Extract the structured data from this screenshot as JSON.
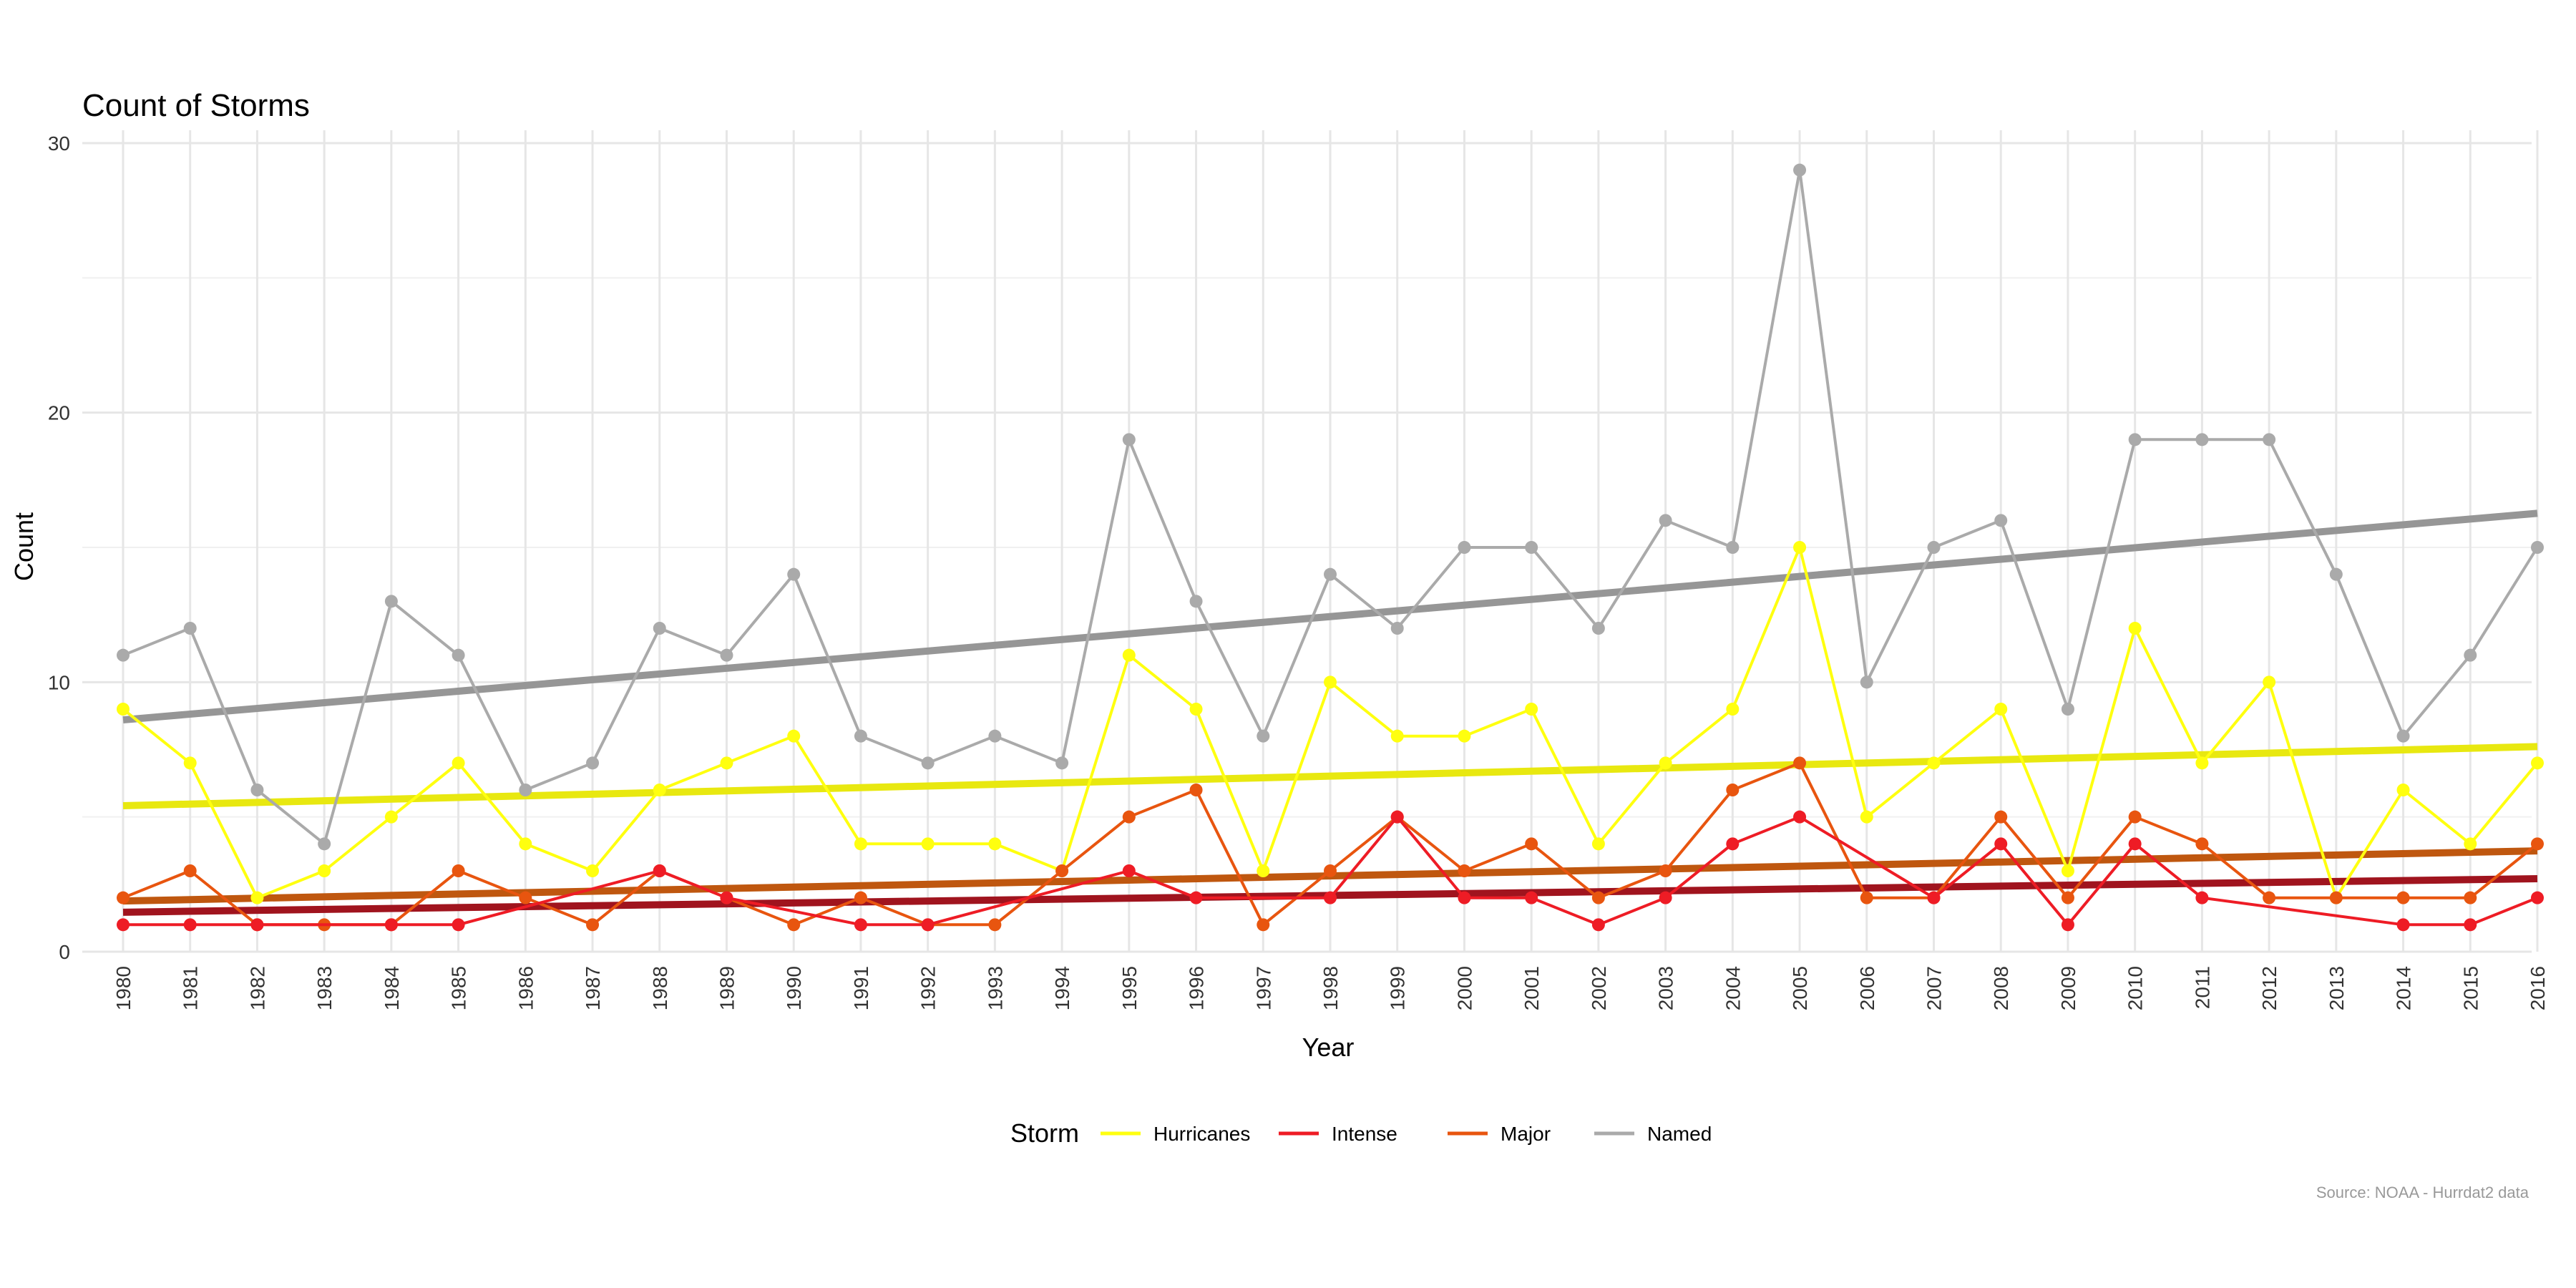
{
  "chart_data": {
    "type": "line",
    "title": "Count of Storms",
    "xlabel": "Year",
    "ylabel": "Count",
    "caption": "Source: NOAA - Hurrdat2 data",
    "legend_title": "Storm",
    "legend_position": "bottom",
    "xlim": [
      1980,
      2016
    ],
    "ylim": [
      0,
      30
    ],
    "y_ticks": [
      "0",
      "10",
      "20",
      "30"
    ],
    "x": [
      "1980",
      "1981",
      "1982",
      "1983",
      "1984",
      "1985",
      "1986",
      "1987",
      "1988",
      "1989",
      "1990",
      "1991",
      "1992",
      "1993",
      "1994",
      "1995",
      "1996",
      "1997",
      "1998",
      "1999",
      "2000",
      "2001",
      "2002",
      "2003",
      "2004",
      "2005",
      "2006",
      "2007",
      "2008",
      "2009",
      "2010",
      "2011",
      "2012",
      "2013",
      "2014",
      "2015",
      "2016"
    ],
    "grid": true,
    "trend_lines": "linear fit per series",
    "series": [
      {
        "name": "Named",
        "color": "#aaaaaa",
        "trend_color": "#969696",
        "values": [
          11,
          12,
          6,
          4,
          13,
          11,
          6,
          7,
          12,
          11,
          14,
          8,
          7,
          8,
          7,
          19,
          13,
          8,
          14,
          12,
          15,
          15,
          12,
          16,
          15,
          29,
          10,
          15,
          16,
          9,
          19,
          19,
          19,
          14,
          8,
          11,
          15
        ]
      },
      {
        "name": "Hurricanes",
        "color": "#ffff0f",
        "trend_color": "#e8e810",
        "values": [
          9,
          7,
          2,
          3,
          5,
          7,
          4,
          3,
          6,
          7,
          8,
          4,
          4,
          4,
          3,
          11,
          9,
          3,
          10,
          8,
          8,
          9,
          4,
          7,
          9,
          15,
          5,
          7,
          9,
          3,
          12,
          7,
          10,
          2,
          6,
          4,
          7
        ]
      },
      {
        "name": "Major",
        "color": "#e8550f",
        "trend_color": "#bf570f",
        "values": [
          2,
          3,
          1,
          1,
          1,
          3,
          2,
          1,
          3,
          2,
          1,
          2,
          1,
          1,
          3,
          5,
          6,
          1,
          3,
          5,
          3,
          4,
          2,
          3,
          6,
          7,
          2,
          2,
          5,
          2,
          5,
          4,
          2,
          2,
          2,
          2,
          4
        ]
      },
      {
        "name": "Intense",
        "color": "#ee1c25",
        "trend_color": "#a0141e",
        "values": [
          1,
          1,
          1,
          null,
          1,
          1,
          null,
          null,
          3,
          2,
          null,
          1,
          1,
          null,
          null,
          3,
          2,
          null,
          2,
          5,
          2,
          2,
          1,
          2,
          4,
          5,
          null,
          2,
          4,
          1,
          4,
          2,
          null,
          null,
          1,
          1,
          2
        ]
      }
    ],
    "legend_order": [
      "Hurricanes",
      "Intense",
      "Major",
      "Named"
    ]
  }
}
